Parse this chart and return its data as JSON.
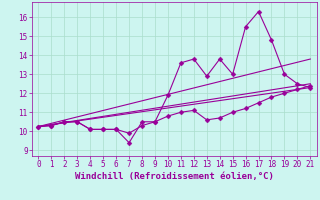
{
  "xlabel": "Windchill (Refroidissement éolien,°C)",
  "bg_color": "#cdf5f0",
  "grid_color": "#aaddcc",
  "line_color": "#990099",
  "xlim": [
    -0.5,
    21.5
  ],
  "ylim": [
    8.7,
    16.8
  ],
  "yticks": [
    9,
    10,
    11,
    12,
    13,
    14,
    15,
    16
  ],
  "xticks": [
    0,
    1,
    2,
    3,
    4,
    5,
    6,
    7,
    8,
    9,
    10,
    11,
    12,
    13,
    14,
    15,
    16,
    17,
    18,
    19,
    20,
    21
  ],
  "line1_x": [
    0,
    1,
    2,
    3,
    4,
    5,
    6,
    7,
    8,
    9,
    10,
    11,
    12,
    13,
    14,
    15,
    16,
    17,
    18,
    19,
    20,
    21
  ],
  "line1_y": [
    10.25,
    10.3,
    10.5,
    10.5,
    10.1,
    10.1,
    10.1,
    9.4,
    10.5,
    10.5,
    11.9,
    13.6,
    13.8,
    12.9,
    13.8,
    13.0,
    15.5,
    16.3,
    14.8,
    13.0,
    12.5,
    12.3
  ],
  "line2_x": [
    0,
    1,
    2,
    3,
    4,
    5,
    6,
    7,
    8,
    9,
    10,
    11,
    12,
    13,
    14,
    15,
    16,
    17,
    18,
    19,
    20,
    21
  ],
  "line2_y": [
    10.25,
    10.3,
    10.5,
    10.5,
    10.1,
    10.1,
    10.1,
    9.9,
    10.3,
    10.5,
    10.8,
    11.0,
    11.1,
    10.6,
    10.7,
    11.0,
    11.2,
    11.5,
    11.8,
    12.0,
    12.2,
    12.4
  ],
  "line3_x": [
    0,
    21
  ],
  "line3_y": [
    10.25,
    13.8
  ],
  "line4_x": [
    0,
    21
  ],
  "line4_y": [
    10.25,
    12.5
  ],
  "line5_x": [
    0,
    21
  ],
  "line5_y": [
    10.25,
    12.3
  ],
  "markersize": 2.5,
  "linewidth": 0.8,
  "tick_fontsize": 5.5,
  "xlabel_fontsize": 6.5
}
